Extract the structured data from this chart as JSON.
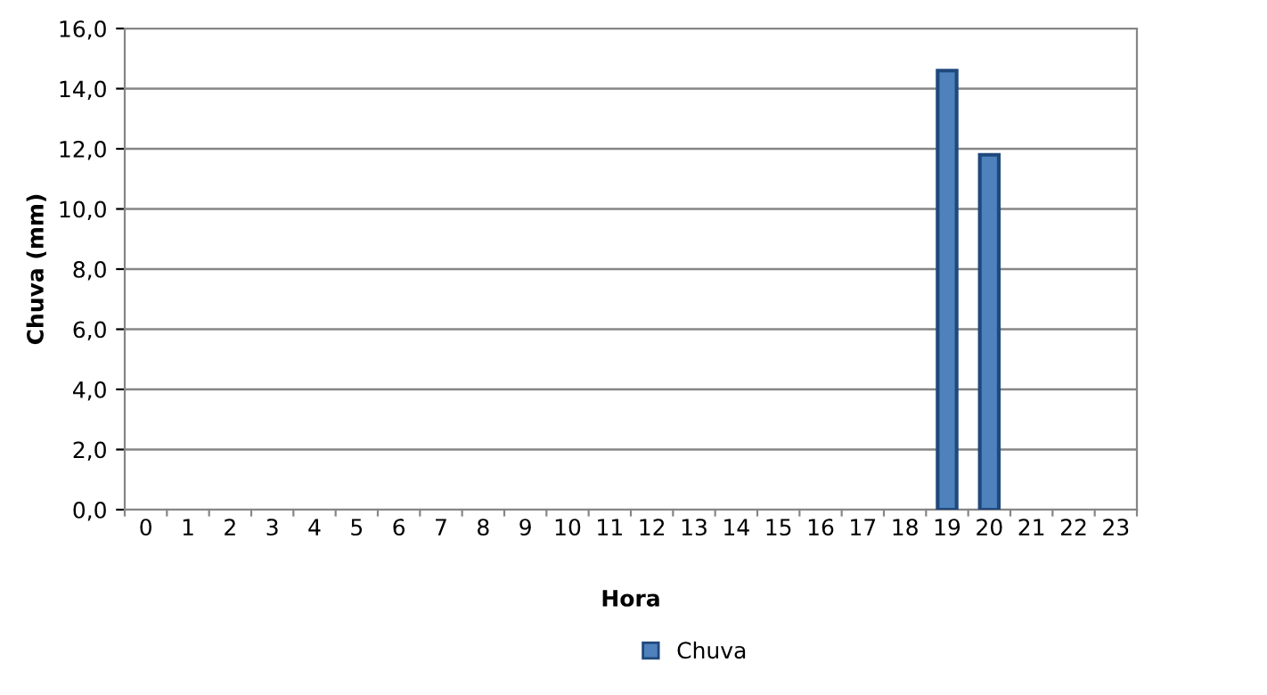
{
  "chart_data": {
    "type": "bar",
    "xlabel": "Hora",
    "ylabel": "Chuva (mm)",
    "categories": [
      "0",
      "1",
      "2",
      "3",
      "4",
      "5",
      "6",
      "7",
      "8",
      "9",
      "10",
      "11",
      "12",
      "13",
      "14",
      "15",
      "16",
      "17",
      "18",
      "19",
      "20",
      "21",
      "22",
      "23"
    ],
    "series": [
      {
        "name": "Chuva",
        "color": "#4f81bd",
        "values": [
          0,
          0,
          0,
          0,
          0,
          0,
          0,
          0,
          0,
          0,
          0,
          0,
          0,
          0,
          0,
          0,
          0,
          0,
          0,
          14.6,
          11.8,
          0,
          0,
          0
        ]
      }
    ],
    "ylim": [
      0,
      16
    ],
    "yticks": [
      {
        "value": 0,
        "label": "0,0"
      },
      {
        "value": 2,
        "label": "2,0"
      },
      {
        "value": 4,
        "label": "4,0"
      },
      {
        "value": 6,
        "label": "6,0"
      },
      {
        "value": 8,
        "label": "8,0"
      },
      {
        "value": 10,
        "label": "10,0"
      },
      {
        "value": 12,
        "label": "12,0"
      },
      {
        "value": 14,
        "label": "14,0"
      },
      {
        "value": 16,
        "label": "16,0"
      }
    ],
    "grid": "y",
    "legend": "bottom"
  }
}
